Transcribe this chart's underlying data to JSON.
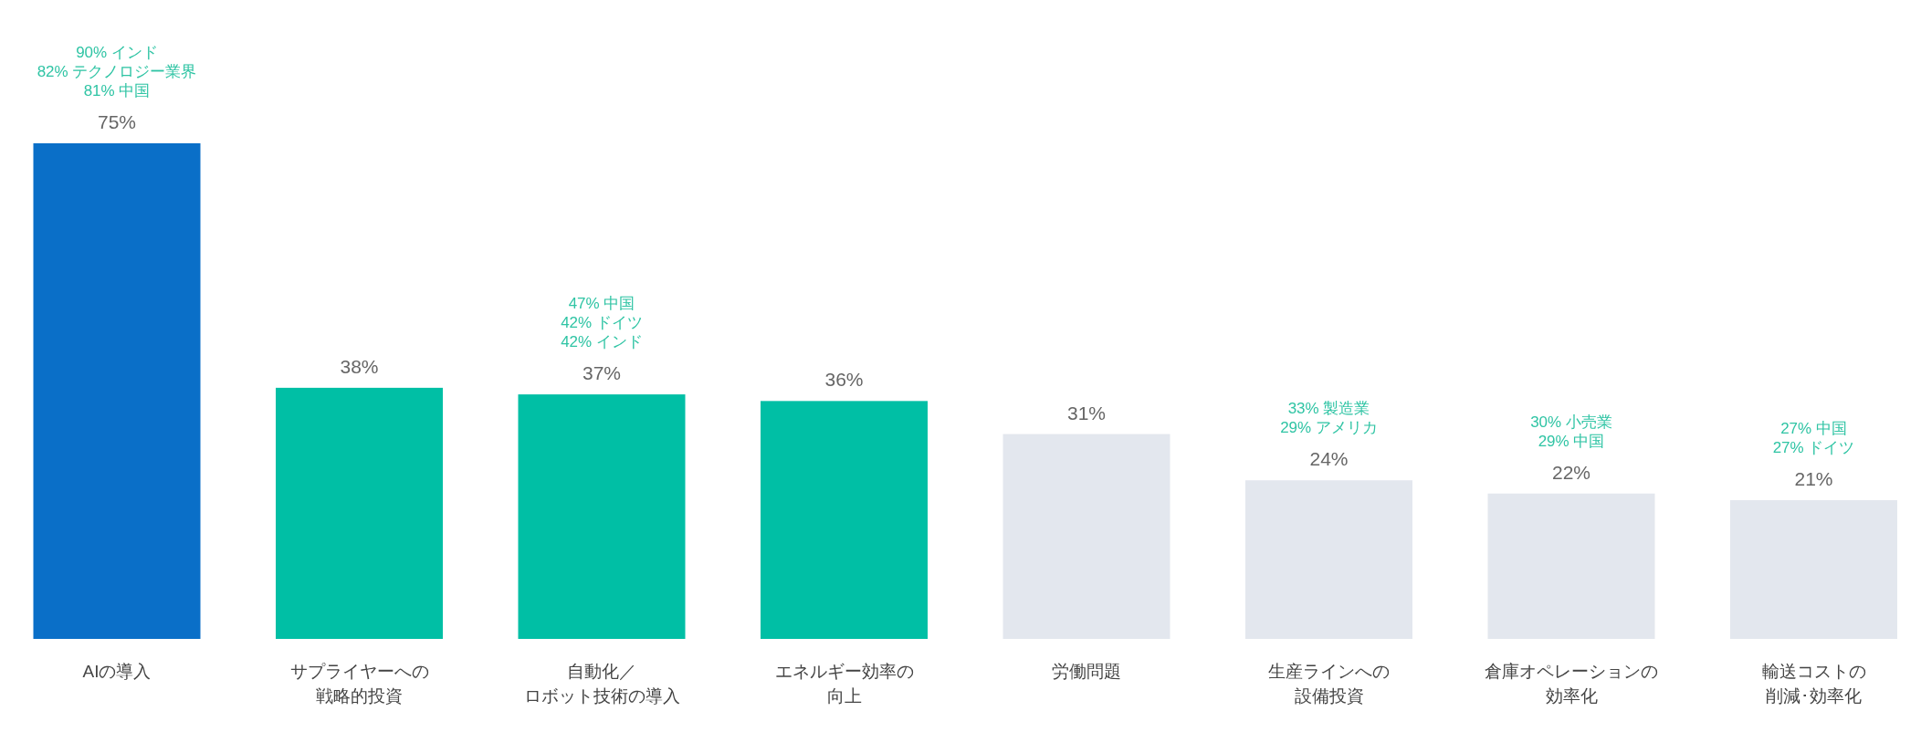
{
  "chart_data": {
    "type": "bar",
    "categories": [
      "AIの導入",
      "サプライヤーへの戦略的投資",
      "自動化／ロボット技術の導入",
      "エネルギー効率の向上",
      "労働問題",
      "生産ラインへの設備投資",
      "倉庫オペレーションの効率化",
      "輸送コストの削減･効率化"
    ],
    "values": [
      75,
      38,
      37,
      36,
      31,
      24,
      22,
      21
    ],
    "value_labels": [
      "75%",
      "38%",
      "37%",
      "36%",
      "31%",
      "24%",
      "22%",
      "21%"
    ],
    "colors": [
      "#0a6fc8",
      "#00bfa5",
      "#00bfa5",
      "#00bfa5",
      "#e3e7ee",
      "#e3e7ee",
      "#e3e7ee",
      "#e3e7ee"
    ],
    "annotations": [
      "90% インド\n82% テクノロジー業界\n81% 中国",
      null,
      "47% 中国\n42% ドイツ\n42% インド",
      null,
      null,
      "33% 製造業\n29% アメリカ",
      "30% 小売業\n29% 中国",
      "27% 中国\n27% ドイツ"
    ]
  }
}
